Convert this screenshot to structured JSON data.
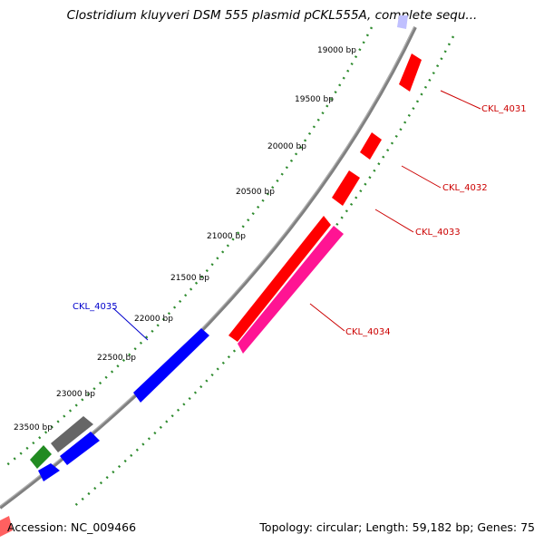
{
  "title": "Clostridium kluyveri DSM 555 plasmid pCKL555A, complete sequ...",
  "footer": {
    "accession": "Accession: NC_009466",
    "summary": "Topology: circular; Length: 59,182 bp; Genes: 75"
  },
  "colors": {
    "backbone": "#808080",
    "tick_ring": "#2e8b2e",
    "forward_gene": "#ff0000",
    "reverse_gene": "#0000ff",
    "pink_gene": "#ff1493",
    "gray_gene": "#666666",
    "green_gene": "#228b22"
  },
  "tick_labels": [
    "19000 bp",
    "19500 bp",
    "20000 bp",
    "20500 bp",
    "21000 bp",
    "21500 bp",
    "22000 bp",
    "22500 bp",
    "23000 bp",
    "23500 bp"
  ],
  "gene_labels": [
    {
      "text": "CKL_4031",
      "color": "#cc0000"
    },
    {
      "text": "CKL_4032",
      "color": "#cc0000"
    },
    {
      "text": "CKL_4033",
      "color": "#cc0000"
    },
    {
      "text": "CKL_4034",
      "color": "#cc0000"
    },
    {
      "text": "CKL_4035",
      "color": "#0000cc"
    }
  ]
}
